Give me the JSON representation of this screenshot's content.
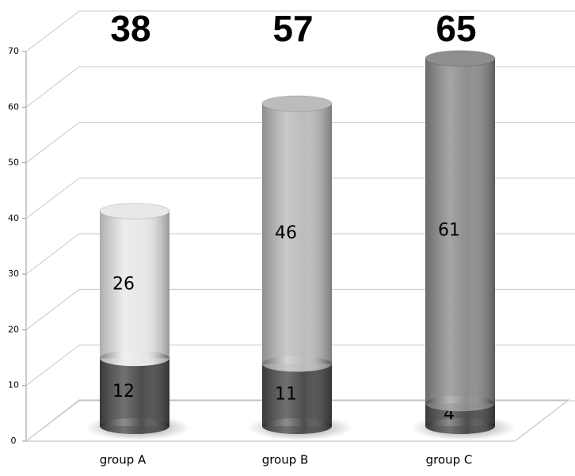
{
  "chart_data": {
    "type": "cylinder_stacked_bar",
    "categories": [
      "group A",
      "group B",
      "group C"
    ],
    "totals": [
      38,
      57,
      65
    ],
    "series": [
      {
        "color": "#4d4d4d",
        "values": [
          12,
          11,
          4
        ]
      },
      {
        "colors": [
          "#e8e8e8",
          "#bcbcbc",
          "#8e8e8e"
        ],
        "values": [
          26,
          46,
          61
        ]
      }
    ],
    "ylim": [
      0,
      70
    ],
    "yticks": [
      0,
      10,
      20,
      30,
      40,
      50,
      60,
      70
    ],
    "grid": true
  }
}
